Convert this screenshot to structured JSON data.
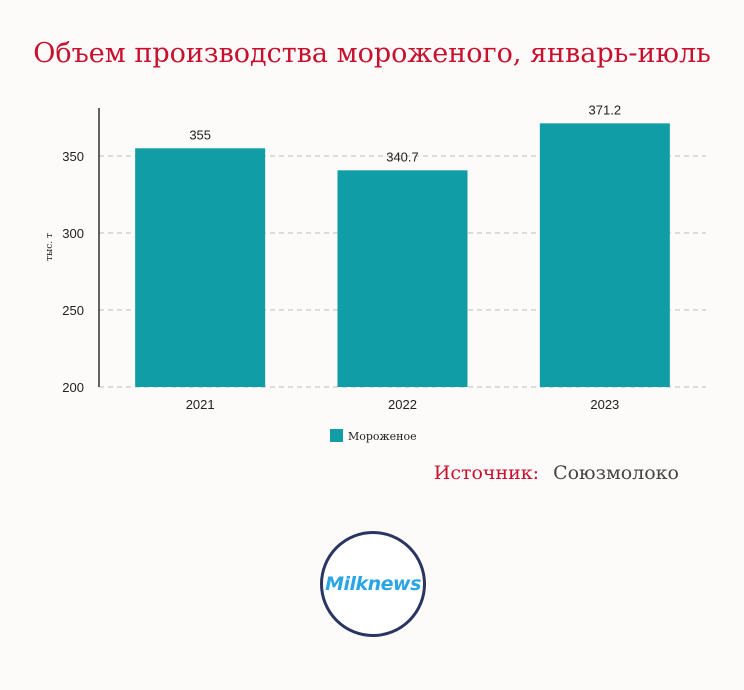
{
  "title": "Объем производства мороженого, январь-июль",
  "source": {
    "label": "Источник:",
    "value": "Союзмолоко"
  },
  "logo": {
    "text": "Milknews"
  },
  "colors": {
    "title": "#c8102e",
    "bar": "#109da5",
    "grid": "#bdbdbd",
    "axis": "#000000",
    "logo_ring": "#2b3561",
    "logo_text": "#2aa6e6"
  },
  "chart_data": {
    "type": "bar",
    "categories": [
      "2021",
      "2022",
      "2023"
    ],
    "series": [
      {
        "name": "Мороженое",
        "values": [
          355,
          340.7,
          371.2
        ],
        "data_labels": [
          "355",
          "340.7",
          "371.2"
        ]
      }
    ],
    "ylabel": "тыс. т",
    "ylim": [
      200,
      380
    ],
    "yticks": [
      200,
      250,
      300,
      350
    ],
    "grid": true,
    "legend": "bottom"
  }
}
